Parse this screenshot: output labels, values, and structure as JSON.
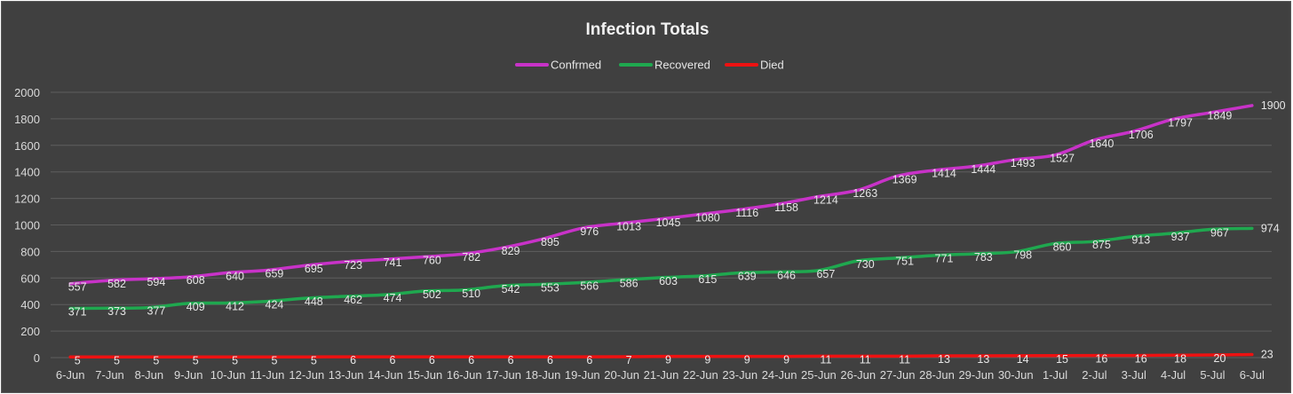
{
  "chart_data": {
    "type": "line",
    "title": "Infection Totals",
    "xlabel": "",
    "ylabel": "",
    "ylim": [
      0,
      2000
    ],
    "ytick_step": 200,
    "grid": true,
    "legend_position": "top-center",
    "categories": [
      "6-Jun",
      "7-Jun",
      "8-Jun",
      "9-Jun",
      "10-Jun",
      "11-Jun",
      "12-Jun",
      "13-Jun",
      "14-Jun",
      "15-Jun",
      "16-Jun",
      "17-Jun",
      "18-Jun",
      "19-Jun",
      "20-Jun",
      "21-Jun",
      "22-Jun",
      "23-Jun",
      "24-Jun",
      "25-Jun",
      "26-Jun",
      "27-Jun",
      "28-Jun",
      "29-Jun",
      "30-Jun",
      "1-Jul",
      "2-Jul",
      "3-Jul",
      "4-Jul",
      "5-Jul",
      "6-Jul"
    ],
    "series": [
      {
        "name": "Confrmed",
        "color": "#c832c8",
        "values": [
          557,
          582,
          594,
          608,
          640,
          659,
          695,
          723,
          741,
          760,
          782,
          829,
          895,
          976,
          1013,
          1045,
          1080,
          1116,
          1158,
          1214,
          1263,
          1369,
          1414,
          1444,
          1493,
          1527,
          1640,
          1706,
          1797,
          1849,
          1900
        ]
      },
      {
        "name": "Recovered",
        "color": "#1fa84f",
        "values": [
          371,
          373,
          377,
          409,
          412,
          424,
          448,
          462,
          474,
          502,
          510,
          542,
          553,
          566,
          586,
          603,
          615,
          639,
          646,
          657,
          730,
          751,
          771,
          783,
          798,
          860,
          875,
          913,
          937,
          967,
          974
        ]
      },
      {
        "name": "Died",
        "color": "#ee1111",
        "values": [
          5,
          5,
          5,
          5,
          5,
          5,
          5,
          6,
          6,
          6,
          6,
          6,
          6,
          6,
          7,
          9,
          9,
          9,
          9,
          11,
          11,
          11,
          13,
          13,
          14,
          15,
          16,
          16,
          18,
          20,
          23
        ]
      }
    ]
  }
}
